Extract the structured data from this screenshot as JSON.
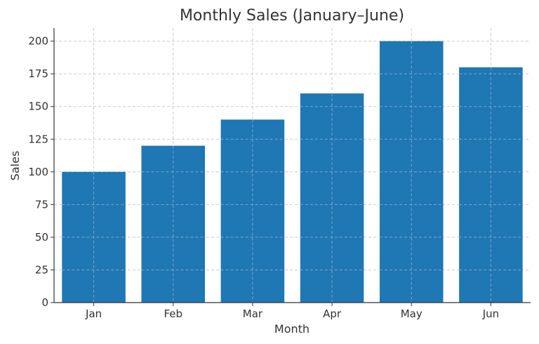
{
  "chart_data": {
    "type": "bar",
    "title": "Monthly Sales (January–June)",
    "xlabel": "Month",
    "ylabel": "Sales",
    "categories": [
      "Jan",
      "Feb",
      "Mar",
      "Apr",
      "May",
      "Jun"
    ],
    "values": [
      100,
      120,
      140,
      160,
      200,
      180
    ],
    "ylim": [
      0,
      210
    ],
    "yticks": [
      0,
      25,
      50,
      75,
      100,
      125,
      150,
      175,
      200
    ],
    "grid": true,
    "colors": {
      "bar": "#1f77b4"
    }
  }
}
